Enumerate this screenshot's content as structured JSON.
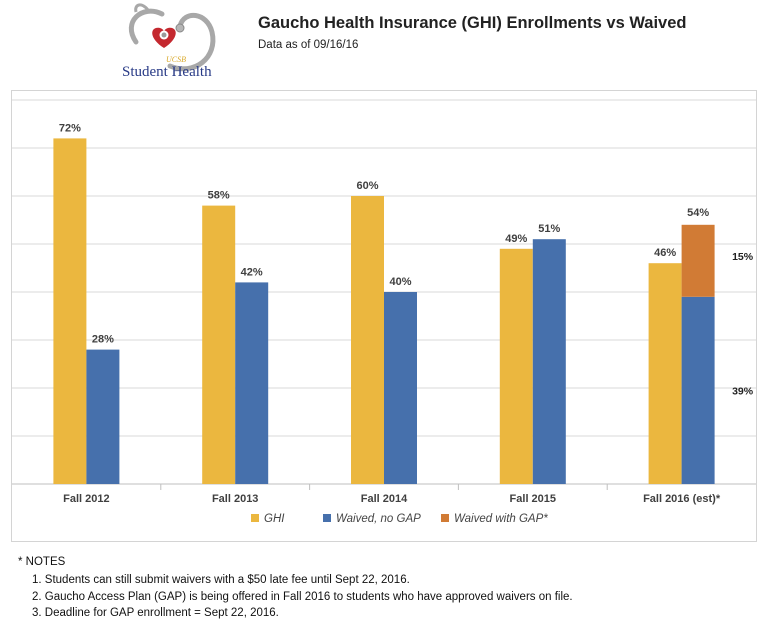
{
  "logo": {
    "org_small": "UCSB",
    "org_name": "Student Health"
  },
  "header": {
    "title": "Gaucho Health Insurance (GHI) Enrollments vs Waived",
    "subtitle": "Data as of 09/16/16"
  },
  "chart_data": {
    "type": "bar",
    "title": "Gaucho Health Insurance (GHI) Enrollments vs Waived",
    "subtitle": "Data as of 09/16/16",
    "categories": [
      "Fall 2012",
      "Fall 2013",
      "Fall 2014",
      "Fall 2015",
      "Fall 2016 (est)*"
    ],
    "series": [
      {
        "name": "GHI",
        "values": [
          72,
          58,
          60,
          49,
          46
        ],
        "color": "#EBB73F",
        "labels": [
          "72%",
          "58%",
          "60%",
          "49%",
          "46%"
        ]
      },
      {
        "name": "Waived, no GAP",
        "values": [
          28,
          42,
          40,
          51,
          39
        ],
        "color": "#4670AC",
        "labels": [
          "28%",
          "42%",
          "40%",
          "51%",
          "39%"
        ]
      },
      {
        "name": "Waived with GAP*",
        "values": [
          null,
          null,
          null,
          null,
          15
        ],
        "color": "#D17B35",
        "labels": [
          null,
          null,
          null,
          null,
          "15%"
        ],
        "stacked_on": "Waived, no GAP"
      }
    ],
    "stack_total_labels": [
      null,
      null,
      null,
      null,
      "54%"
    ],
    "ylim": [
      0,
      80
    ],
    "grid": true,
    "legend_position": "bottom"
  },
  "notes": {
    "heading": "* NOTES",
    "items": [
      "1.  Students can still submit waivers with a $50 late fee until Sept 22, 2016.",
      "2. Gaucho Access Plan (GAP) is being offered in Fall 2016 to students who have approved waivers on file.",
      "3. Deadline for GAP enrollment =  Sept 22, 2016."
    ]
  },
  "colors": {
    "ghi": "#EBB73F",
    "waived_no_gap": "#4670AC",
    "waived_gap": "#D17B35",
    "grid": "#d9d9d9",
    "logo_blue": "#283a86",
    "logo_gold": "#d9a92b",
    "logo_red": "#c4282f"
  }
}
